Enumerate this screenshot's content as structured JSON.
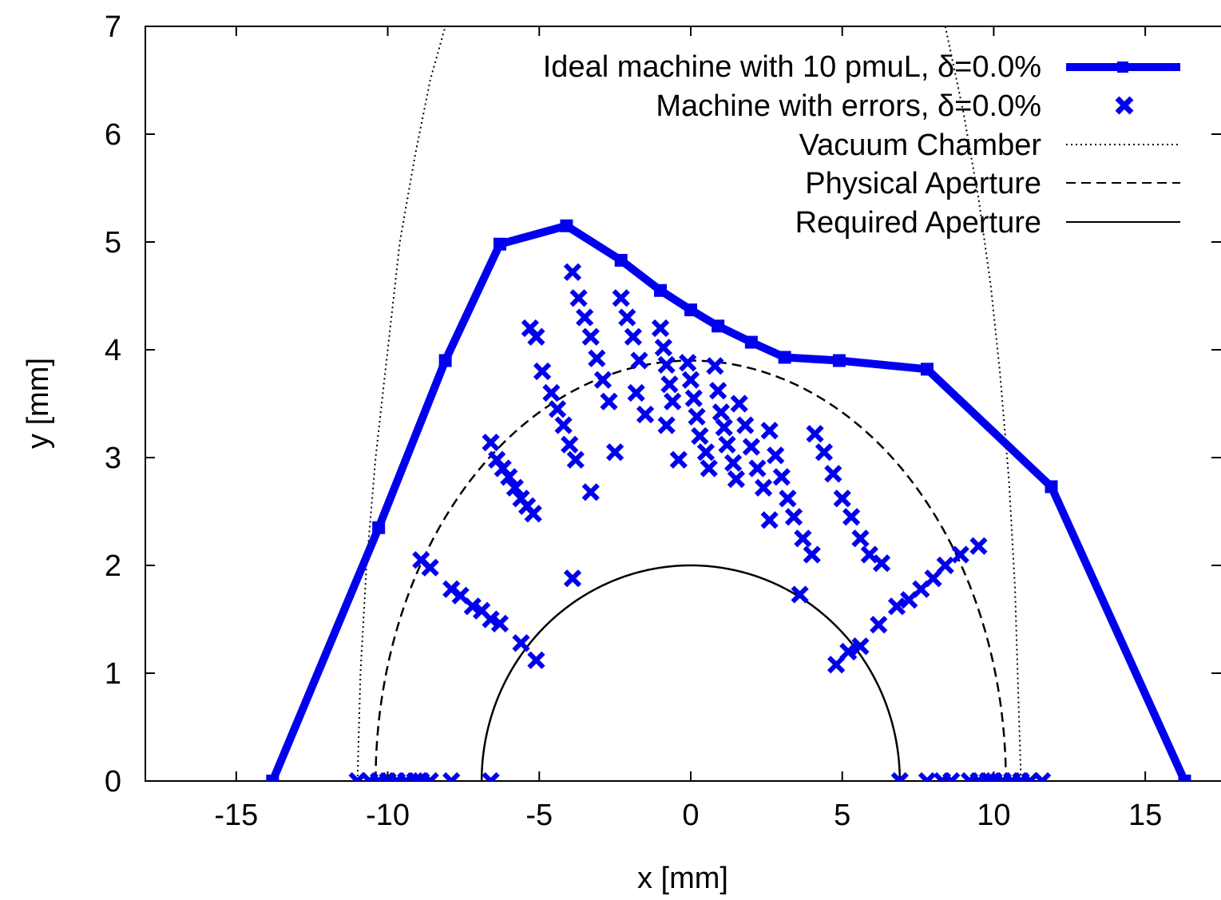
{
  "chart_data": {
    "type": "line",
    "xlabel": "x [mm]",
    "ylabel": "y [mm]",
    "xlim": [
      -18,
      17.5
    ],
    "ylim": [
      0,
      7
    ],
    "x_ticks": [
      -15,
      -10,
      -5,
      0,
      5,
      10,
      15
    ],
    "y_ticks": [
      0,
      1,
      2,
      3,
      4,
      5,
      6,
      7
    ],
    "x_tick_labels": [
      "-15",
      "-10",
      "-5",
      "0",
      "5",
      "10",
      "15"
    ],
    "y_tick_labels": [
      "0",
      "1",
      "2",
      "3",
      "4",
      "5",
      "6",
      "7"
    ],
    "grid": false,
    "legend_position": "top-right",
    "colors": {
      "series": "#0000ee",
      "reference": "#000000"
    },
    "series": [
      {
        "name": "Ideal machine with 10 pmuL, δ=0.0%",
        "style": "thick-line-with-points",
        "x": [
          -13.8,
          -10.3,
          -8.1,
          -6.3,
          -4.1,
          -2.3,
          -1.0,
          0.0,
          0.9,
          2.0,
          3.1,
          4.9,
          7.8,
          11.9,
          16.3
        ],
        "y": [
          0.0,
          2.35,
          3.9,
          4.98,
          5.15,
          4.83,
          4.55,
          4.37,
          4.22,
          4.07,
          3.93,
          3.9,
          3.82,
          2.73,
          0.0
        ]
      },
      {
        "name": "Machine with errors, δ=0.0%",
        "style": "x-markers",
        "x": [
          -11.0,
          -10.6,
          -10.3,
          -10.0,
          -9.7,
          -9.4,
          -9.1,
          -8.9,
          -8.6,
          -7.9,
          -6.6,
          6.9,
          7.8,
          8.3,
          8.6,
          9.2,
          9.5,
          9.8,
          10.0,
          10.3,
          10.6,
          10.9,
          11.2,
          11.6,
          -8.9,
          -8.6,
          -7.9,
          -7.6,
          -7.2,
          -6.9,
          -6.6,
          -6.3,
          -5.6,
          -5.1,
          5.2,
          5.6,
          4.8,
          6.2,
          6.8,
          7.2,
          7.6,
          8.0,
          8.4,
          8.9,
          9.5,
          3.6,
          -3.9,
          -6.6,
          -6.4,
          -6.2,
          -6.0,
          -5.8,
          -5.6,
          -5.4,
          -5.2,
          -5.3,
          -5.1,
          -4.9,
          -4.6,
          -4.4,
          -4.2,
          -4.0,
          -3.8,
          -3.9,
          -3.7,
          -3.5,
          -3.3,
          -3.1,
          -2.9,
          -2.7,
          -3.3,
          -2.3,
          -2.1,
          -1.9,
          -1.7,
          -1.8,
          -2.5,
          -1.5,
          -1.0,
          -0.9,
          -0.8,
          -0.7,
          -0.6,
          -0.4,
          -0.8,
          -0.1,
          0.0,
          0.1,
          0.2,
          0.3,
          0.5,
          0.6,
          0.8,
          0.9,
          1.0,
          1.1,
          1.2,
          1.4,
          1.5,
          1.6,
          1.8,
          2.0,
          2.2,
          2.4,
          2.6,
          2.6,
          2.8,
          3.0,
          3.2,
          3.4,
          3.7,
          4.0,
          4.1,
          4.4,
          4.7,
          5.0,
          5.3,
          5.6,
          5.9,
          6.3
        ],
        "y": [
          0.0,
          0.0,
          0.0,
          0.0,
          0.0,
          0.0,
          0.0,
          0.0,
          0.0,
          0.0,
          0.0,
          0.0,
          0.0,
          0.0,
          0.0,
          0.0,
          0.0,
          0.0,
          0.0,
          0.0,
          0.0,
          0.0,
          0.0,
          0.0,
          2.05,
          1.98,
          1.78,
          1.72,
          1.62,
          1.58,
          1.5,
          1.46,
          1.28,
          1.12,
          1.2,
          1.25,
          1.08,
          1.45,
          1.62,
          1.68,
          1.78,
          1.88,
          2.0,
          2.1,
          2.18,
          1.73,
          1.88,
          3.14,
          2.98,
          2.9,
          2.82,
          2.72,
          2.62,
          2.55,
          2.48,
          4.2,
          4.12,
          3.8,
          3.6,
          3.45,
          3.3,
          3.12,
          2.98,
          4.72,
          4.48,
          4.3,
          4.12,
          3.92,
          3.72,
          3.52,
          2.68,
          4.48,
          4.3,
          4.12,
          3.9,
          3.6,
          3.05,
          3.4,
          4.2,
          4.02,
          3.86,
          3.68,
          3.52,
          2.98,
          3.3,
          3.88,
          3.72,
          3.55,
          3.38,
          3.2,
          3.05,
          2.9,
          3.85,
          3.62,
          3.42,
          3.28,
          3.12,
          2.95,
          2.8,
          3.5,
          3.3,
          3.1,
          2.9,
          2.72,
          2.42,
          3.25,
          3.02,
          2.82,
          2.62,
          2.45,
          2.25,
          2.1,
          3.22,
          3.05,
          2.85,
          2.62,
          2.45,
          2.25,
          2.1,
          2.02
        ]
      },
      {
        "name": "Vacuum Chamber",
        "style": "dotted-line",
        "x": [
          -11.0,
          -10.9,
          -10.7,
          -10.4,
          -10.0,
          -9.6,
          -9.1,
          -8.6,
          -8.1,
          8.4,
          9.0,
          9.5,
          9.9,
          10.2,
          10.5,
          10.7,
          10.8,
          10.9
        ],
        "y": [
          0.0,
          1.0,
          2.0,
          3.0,
          4.0,
          5.0,
          5.8,
          6.5,
          7.0,
          7.0,
          6.2,
          5.4,
          4.6,
          3.8,
          2.8,
          1.8,
          0.9,
          0.0
        ]
      },
      {
        "name": "Physical Aperture",
        "style": "dashed-half-ellipse",
        "semi_axis_x": 10.4,
        "semi_axis_y": 3.9
      },
      {
        "name": "Required Aperture",
        "style": "solid-half-ellipse",
        "semi_axis_x": 6.9,
        "semi_axis_y": 2.0
      }
    ]
  }
}
